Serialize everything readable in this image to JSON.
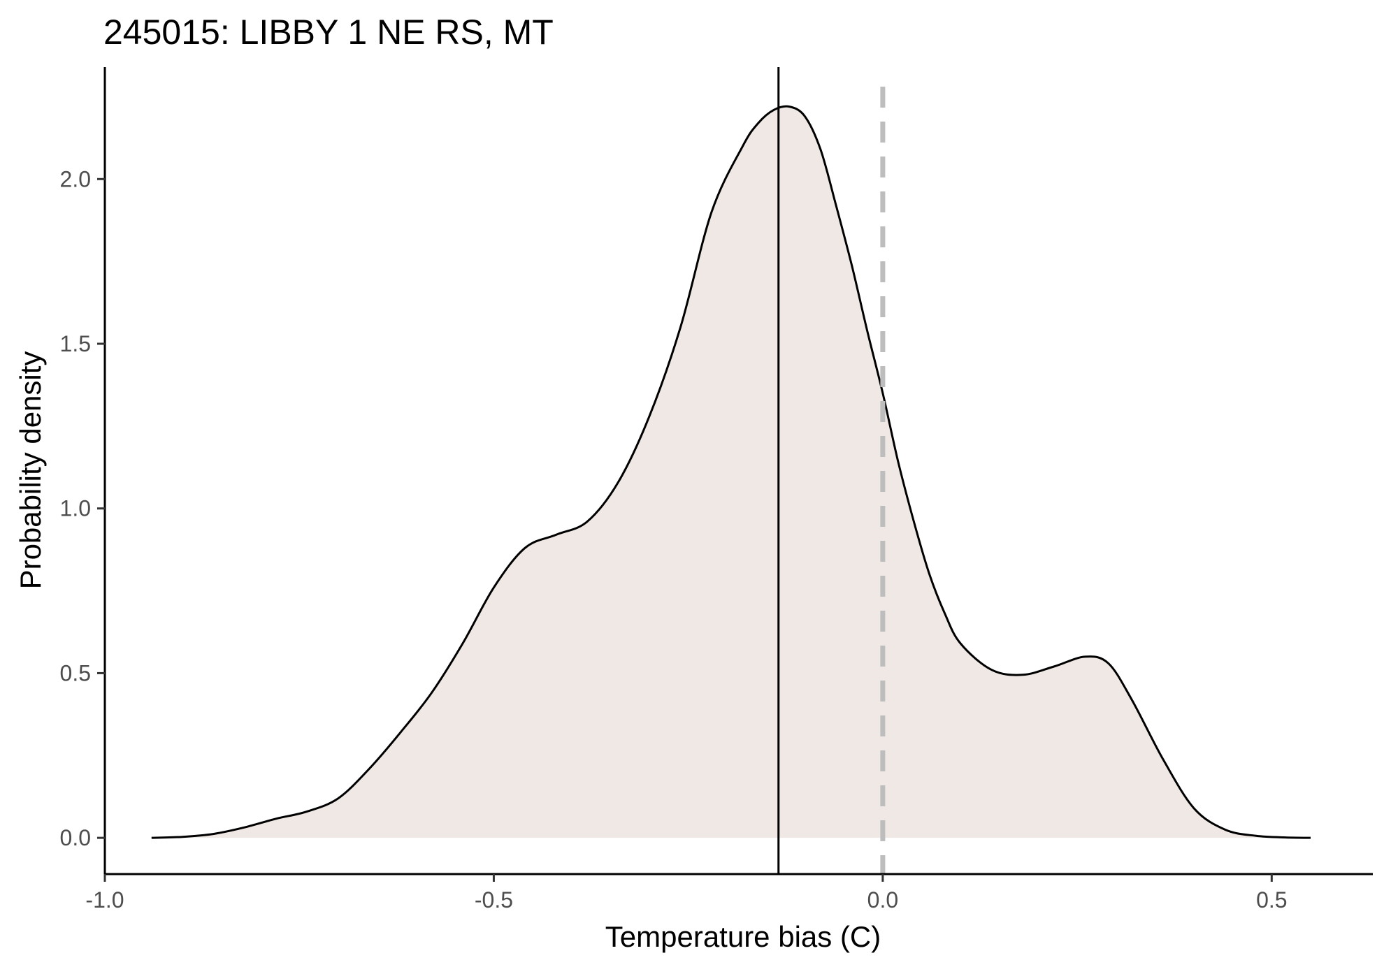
{
  "chart_data": {
    "type": "area",
    "title": "245015: LIBBY 1 NE RS, MT",
    "xlabel": "Temperature bias (C)",
    "ylabel": "Probability density",
    "xlim": [
      -1.0,
      0.63
    ],
    "ylim": [
      -0.11,
      2.34
    ],
    "x_ticks": [
      -1.0,
      -0.5,
      0.0,
      0.5
    ],
    "x_tick_labels": [
      "-1.0",
      "-0.5",
      "0.0",
      "0.5"
    ],
    "y_ticks": [
      0.0,
      0.5,
      1.0,
      1.5,
      2.0
    ],
    "y_tick_labels": [
      "0.0",
      "0.5",
      "1.0",
      "1.5",
      "2.0"
    ],
    "grid": false,
    "legend": "none",
    "mean_line_x": -0.134,
    "reference_line_x": 0.0,
    "fill_color": "#efe8e5",
    "line_color": "#000000",
    "reference_line_color": "#bdbdbd",
    "x": [
      -0.94,
      -0.9,
      -0.86,
      -0.82,
      -0.78,
      -0.74,
      -0.7,
      -0.66,
      -0.62,
      -0.58,
      -0.54,
      -0.5,
      -0.46,
      -0.42,
      -0.38,
      -0.34,
      -0.3,
      -0.26,
      -0.22,
      -0.18,
      -0.16,
      -0.14,
      -0.12,
      -0.1,
      -0.08,
      -0.06,
      -0.04,
      -0.02,
      0.0,
      0.02,
      0.04,
      0.06,
      0.08,
      0.1,
      0.14,
      0.18,
      0.22,
      0.26,
      0.29,
      0.32,
      0.36,
      0.4,
      0.44,
      0.48,
      0.52,
      0.55
    ],
    "y": [
      0.0,
      0.003,
      0.012,
      0.032,
      0.058,
      0.08,
      0.12,
      0.21,
      0.32,
      0.44,
      0.59,
      0.76,
      0.88,
      0.92,
      0.96,
      1.08,
      1.28,
      1.55,
      1.9,
      2.1,
      2.17,
      2.21,
      2.22,
      2.19,
      2.09,
      1.92,
      1.74,
      1.54,
      1.35,
      1.14,
      0.96,
      0.8,
      0.68,
      0.59,
      0.51,
      0.495,
      0.52,
      0.55,
      0.53,
      0.42,
      0.24,
      0.09,
      0.025,
      0.006,
      0.001,
      0.0
    ]
  }
}
